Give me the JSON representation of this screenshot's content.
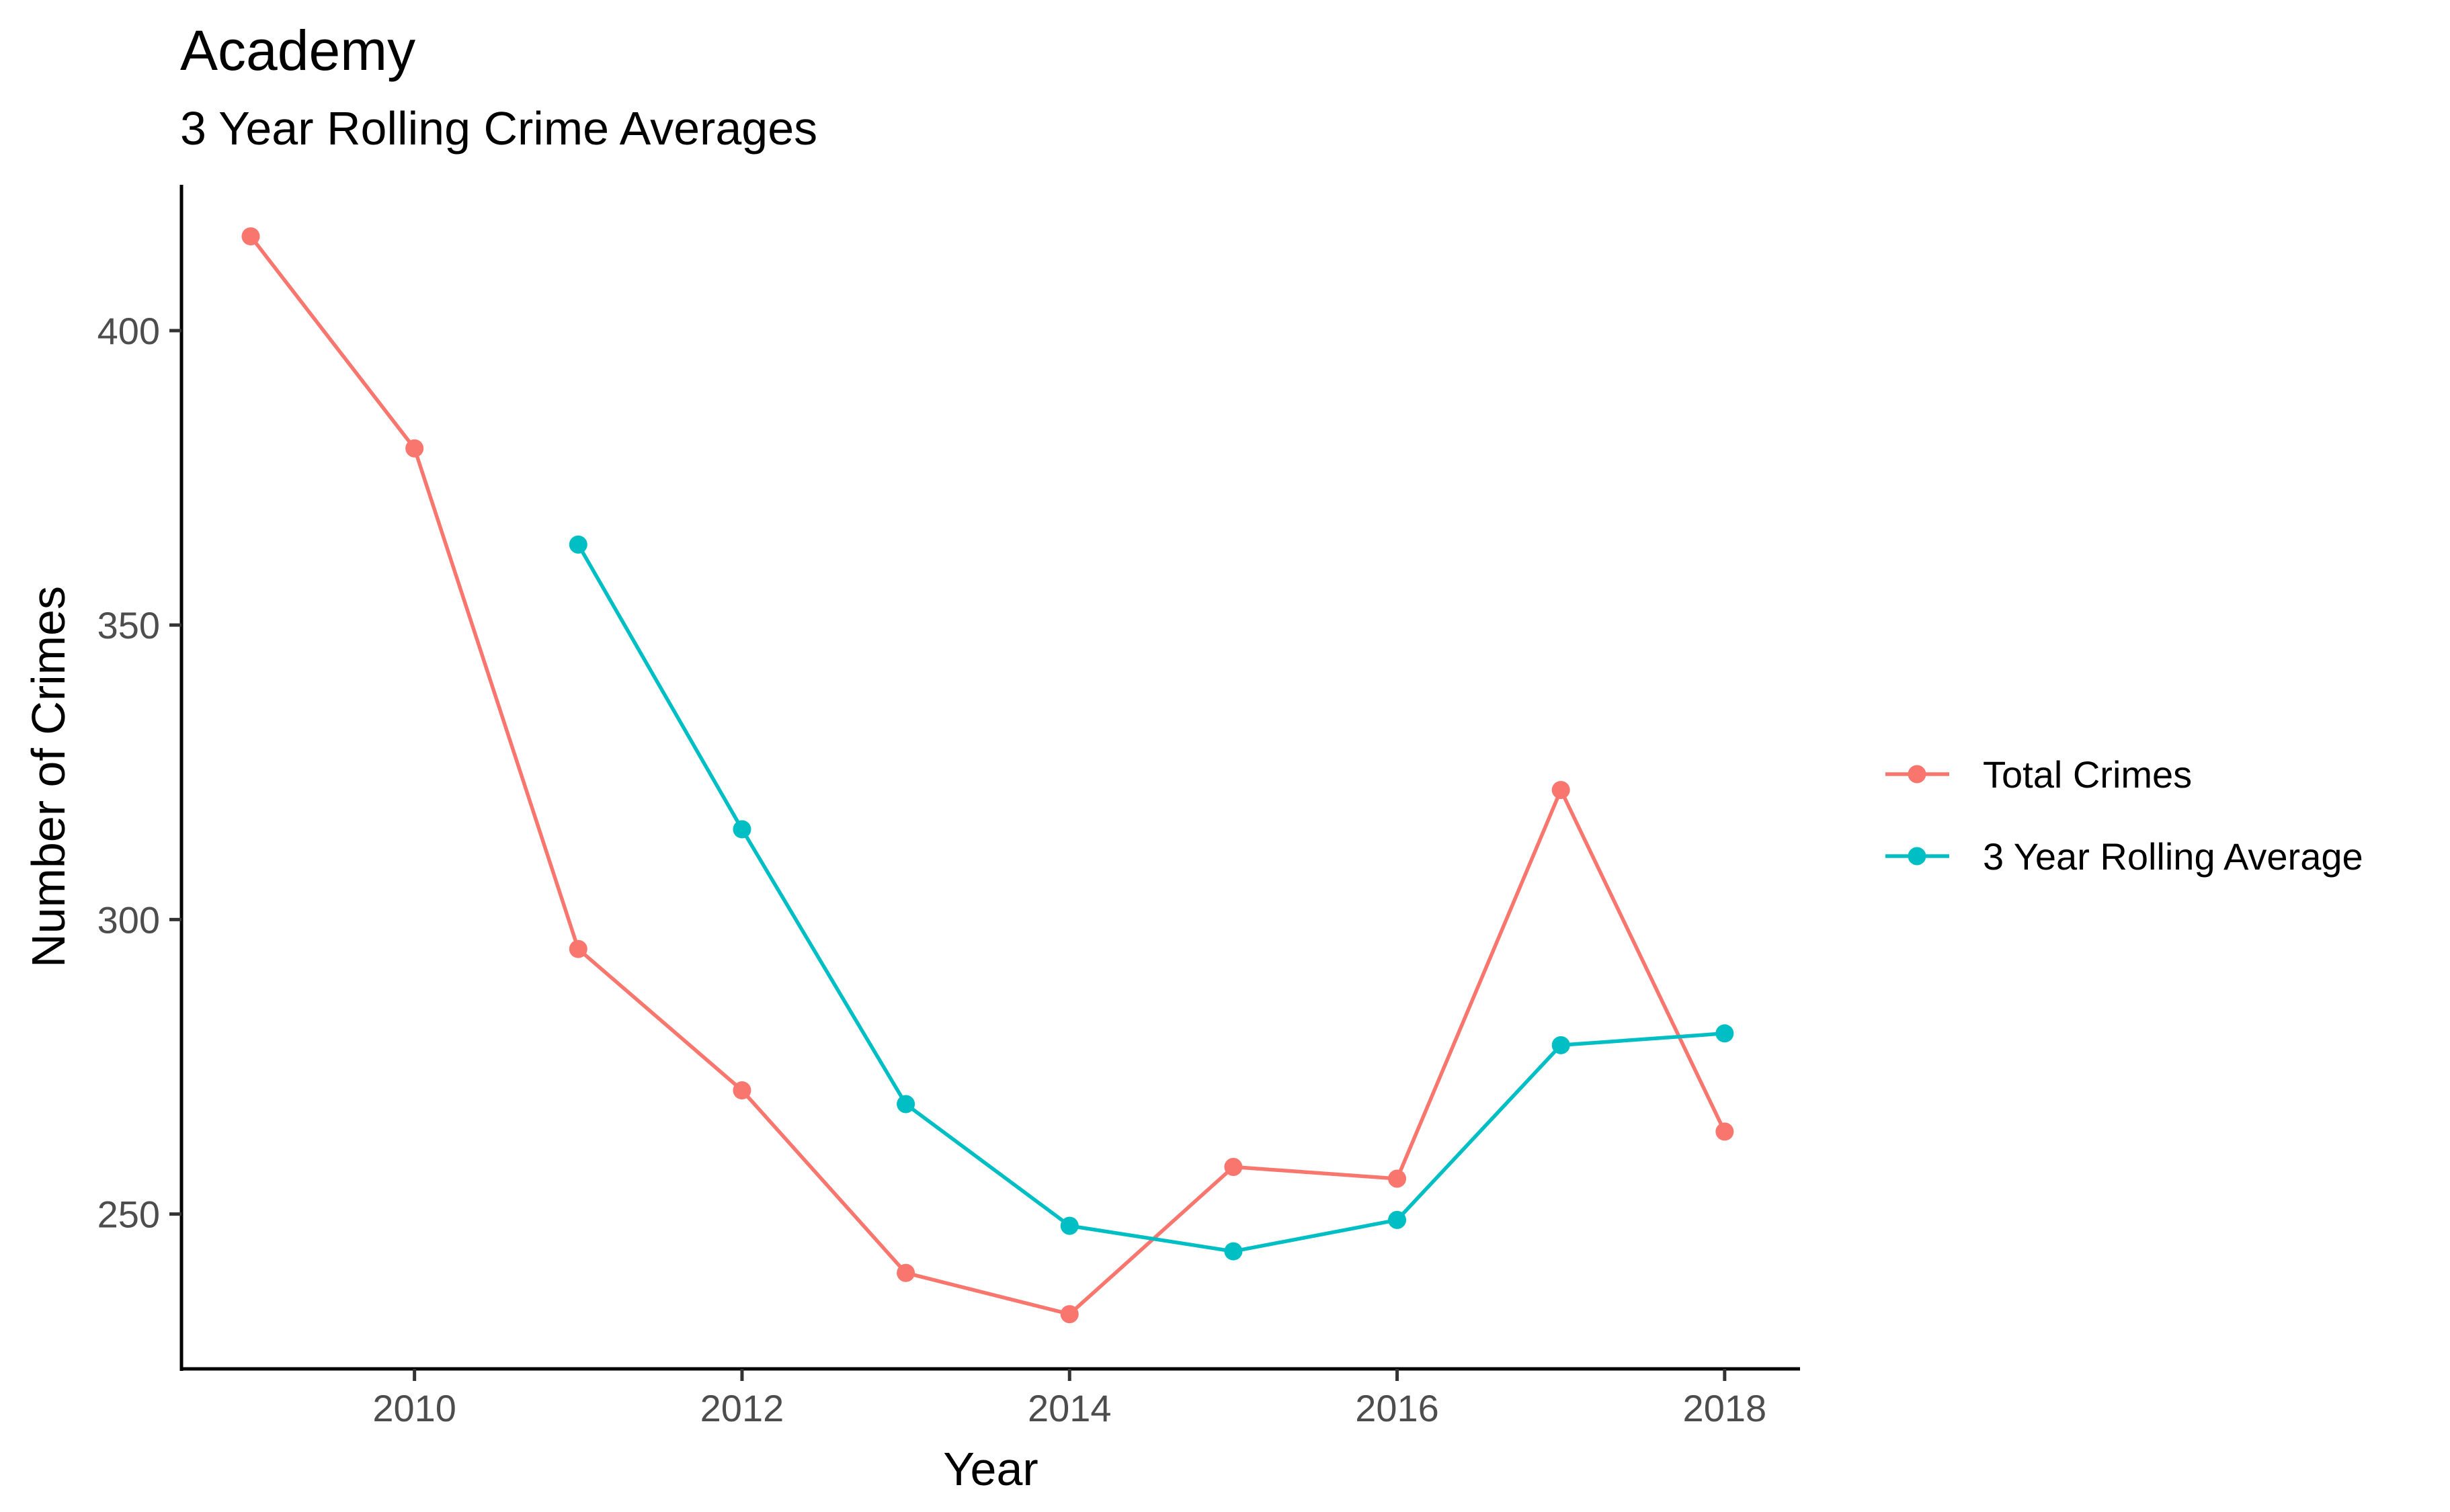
{
  "chart_data": {
    "type": "line",
    "title": "Academy",
    "subtitle": "3 Year Rolling Crime Averages",
    "xlabel": "Year",
    "ylabel": "Number of Crimes",
    "xlim": [
      2008.5,
      2018.5
    ],
    "ylim": [
      225,
      425
    ],
    "x_ticks": [
      2010,
      2012,
      2014,
      2016,
      2018
    ],
    "y_ticks": [
      250,
      300,
      350,
      400
    ],
    "grid": false,
    "legend_position": "right",
    "series": [
      {
        "name": "Total Crimes",
        "color": "#F8766D",
        "x": [
          2009,
          2010,
          2011,
          2012,
          2013,
          2014,
          2015,
          2016,
          2017,
          2018
        ],
        "values": [
          416,
          380,
          295,
          271,
          240,
          233,
          258,
          256,
          322,
          264
        ]
      },
      {
        "name": "3 Year Rolling Average",
        "color": "#00BFC4",
        "x": [
          2011,
          2012,
          2013,
          2014,
          2015,
          2016,
          2017,
          2018
        ],
        "values": [
          363.67,
          315.33,
          268.67,
          248,
          243.67,
          249,
          278.67,
          280.67
        ]
      }
    ]
  }
}
